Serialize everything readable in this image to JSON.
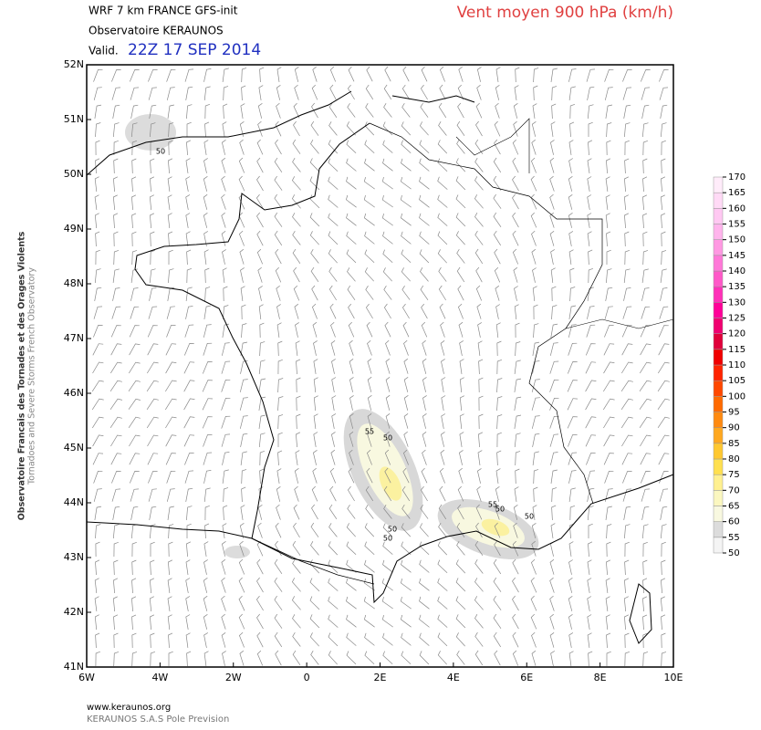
{
  "header": {
    "model": "WRF 7 km FRANCE  GFS-init",
    "observatory": "Observatoire KERAUNOS",
    "valid_label": "Valid.",
    "valid_time": "22Z 17 SEP 2014",
    "title": "Vent moyen 900 hPa (km/h)"
  },
  "map": {
    "lon_range": [
      -6,
      10
    ],
    "lat_range": [
      41,
      52
    ],
    "lon_ticks": [
      {
        "value": -6,
        "label": "6W"
      },
      {
        "value": -4,
        "label": "4W"
      },
      {
        "value": -2,
        "label": "2W"
      },
      0,
      {
        "value": 2,
        "label": "2E"
      },
      {
        "value": 4,
        "label": "4E"
      },
      {
        "value": 6,
        "label": "6E"
      },
      {
        "value": 8,
        "label": "8E"
      },
      {
        "value": 10,
        "label": "10E"
      }
    ],
    "lat_ticks": [
      {
        "value": 41,
        "label": "41N"
      },
      {
        "value": 42,
        "label": "42N"
      },
      {
        "value": 43,
        "label": "43N"
      },
      {
        "value": 44,
        "label": "44N"
      },
      {
        "value": 45,
        "label": "45N"
      },
      {
        "value": 46,
        "label": "46N"
      },
      {
        "value": 47,
        "label": "47N"
      },
      {
        "value": 48,
        "label": "48N"
      },
      {
        "value": 49,
        "label": "49N"
      },
      {
        "value": 50,
        "label": "50N"
      },
      {
        "value": 51,
        "label": "51N"
      },
      {
        "value": 52,
        "label": "52N"
      }
    ],
    "contour_labels": [
      "50",
      "55",
      "50",
      "50",
      "50",
      "55",
      "50",
      "50"
    ]
  },
  "colorbar": {
    "levels": [
      50,
      55,
      60,
      65,
      70,
      75,
      80,
      85,
      90,
      95,
      100,
      105,
      110,
      115,
      120,
      125,
      130,
      135,
      140,
      145,
      150,
      155,
      160,
      165,
      170
    ],
    "colors": [
      "#f4f4f4",
      "#dcdcdc",
      "#f8f8e0",
      "#fbf7c0",
      "#fff090",
      "#ffe050",
      "#ffc830",
      "#ffa820",
      "#ff8a10",
      "#ff6a00",
      "#ff4800",
      "#ff2400",
      "#f00000",
      "#e0003a",
      "#f00070",
      "#ff0098",
      "#ff30b8",
      "#ff58c8",
      "#ff78d8",
      "#ff98e2",
      "#ffb4ec",
      "#ffc8f2",
      "#ffdaf6",
      "#ffecfa"
    ]
  },
  "side": {
    "line1": "Observatoire Francais des Tornades et des Orages Violents",
    "line2": "Tornadoes and Severe Storms French Observatory"
  },
  "footer": {
    "url": "www.keraunos.org",
    "company": "KERAUNOS S.A.S Pole Prevision"
  }
}
